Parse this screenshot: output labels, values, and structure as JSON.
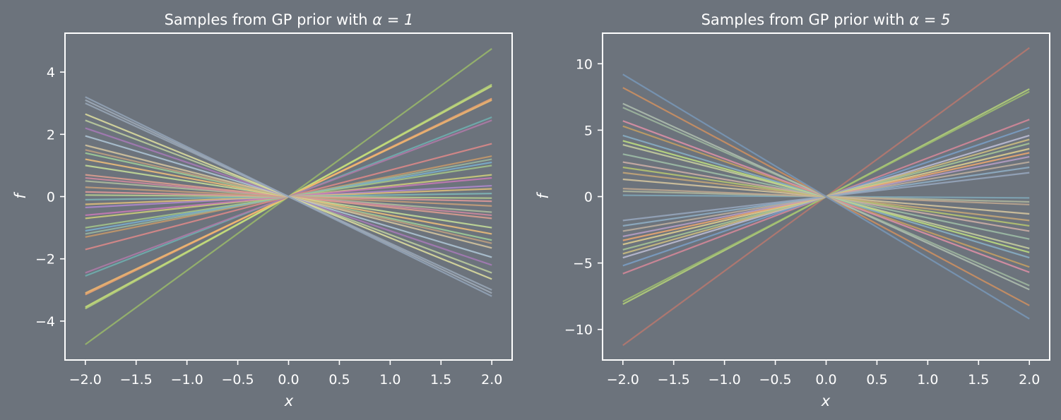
{
  "chart_data": [
    {
      "type": "line",
      "title_prefix": "Samples from GP prior with ",
      "title_math": "α = 1",
      "xlabel": "x",
      "ylabel": "f",
      "xlim": [
        -2.2,
        2.2
      ],
      "ylim": [
        -5.25,
        5.25
      ],
      "xticks": [
        -2.0,
        -1.5,
        -1.0,
        -0.5,
        0.0,
        0.5,
        1.0,
        1.5,
        2.0
      ],
      "xtick_labels": [
        "−2.0",
        "−1.5",
        "−1.0",
        "−0.5",
        "0.0",
        "0.5",
        "1.0",
        "1.5",
        "2.0"
      ],
      "yticks": [
        -4,
        -2,
        0,
        2,
        4
      ],
      "ytick_labels": [
        "−4",
        "−2",
        "0",
        "2",
        "4"
      ],
      "x_range": [
        -2,
        2
      ],
      "grid": false,
      "series_note_slopes": "each sample is a line f = w·x through the origin; values below are f at x = 2",
      "series": [
        {
          "f_at_2": 4.75,
          "color": "#9aba6a"
        },
        {
          "f_at_2": 3.6,
          "color": "#b6d47a"
        },
        {
          "f_at_2": 3.55,
          "color": "#c9e07a"
        },
        {
          "f_at_2": 3.15,
          "color": "#f0a66e"
        },
        {
          "f_at_2": 3.1,
          "color": "#f4b870"
        },
        {
          "f_at_2": 2.55,
          "color": "#6fb0b0"
        },
        {
          "f_at_2": 2.45,
          "color": "#b07aa8"
        },
        {
          "f_at_2": 1.7,
          "color": "#e08a8a"
        },
        {
          "f_at_2": 1.3,
          "color": "#c99a6a"
        },
        {
          "f_at_2": 1.2,
          "color": "#9ab8a0"
        },
        {
          "f_at_2": 1.1,
          "color": "#7ab0d0"
        },
        {
          "f_at_2": 1.0,
          "color": "#a6c88a"
        },
        {
          "f_at_2": 0.7,
          "color": "#d0d07a"
        },
        {
          "f_at_2": 0.6,
          "color": "#c97ab8"
        },
        {
          "f_at_2": 0.35,
          "color": "#b08ad0"
        },
        {
          "f_at_2": 0.25,
          "color": "#e0c07a"
        },
        {
          "f_at_2": 0.1,
          "color": "#80b8b8"
        },
        {
          "f_at_2": -0.05,
          "color": "#b8d090"
        },
        {
          "f_at_2": -0.15,
          "color": "#e09a9a"
        },
        {
          "f_at_2": -0.3,
          "color": "#c9a07a"
        },
        {
          "f_at_2": -0.5,
          "color": "#b0c0a0"
        },
        {
          "f_at_2": -0.6,
          "color": "#d08aa0"
        },
        {
          "f_at_2": -0.7,
          "color": "#e0a090"
        },
        {
          "f_at_2": -1.0,
          "color": "#c8e09a"
        },
        {
          "f_at_2": -1.2,
          "color": "#f0c07a"
        },
        {
          "f_at_2": -1.4,
          "color": "#a0d09a"
        },
        {
          "f_at_2": -1.5,
          "color": "#c0a080"
        },
        {
          "f_at_2": -1.65,
          "color": "#d8c8a0"
        },
        {
          "f_at_2": -1.95,
          "color": "#b0c8d8"
        },
        {
          "f_at_2": -2.2,
          "color": "#a87ab8"
        },
        {
          "f_at_2": -2.45,
          "color": "#c0d0a0"
        },
        {
          "f_at_2": -2.65,
          "color": "#e0e0a0"
        },
        {
          "f_at_2": -3.0,
          "color": "#9aa8b8"
        },
        {
          "f_at_2": -3.1,
          "color": "#a0acba"
        },
        {
          "f_at_2": -3.2,
          "color": "#94a4b8"
        }
      ]
    },
    {
      "type": "line",
      "title_prefix": "Samples from GP prior with ",
      "title_math": "α = 5",
      "xlabel": "x",
      "ylabel": "f",
      "xlim": [
        -2.2,
        2.2
      ],
      "ylim": [
        -12.3,
        12.3
      ],
      "xticks": [
        -2.0,
        -1.5,
        -1.0,
        -0.5,
        0.0,
        0.5,
        1.0,
        1.5,
        2.0
      ],
      "xtick_labels": [
        "−2.0",
        "−1.5",
        "−1.0",
        "−0.5",
        "0.0",
        "0.5",
        "1.0",
        "1.5",
        "2.0"
      ],
      "yticks": [
        -10,
        -5,
        0,
        5,
        10
      ],
      "ytick_labels": [
        "−10",
        "−5",
        "0",
        "5",
        "10"
      ],
      "x_range": [
        -2,
        2
      ],
      "grid": false,
      "series": [
        {
          "f_at_2": 11.2,
          "color": "#b8786e"
        },
        {
          "f_at_2": 8.1,
          "color": "#b6d47a"
        },
        {
          "f_at_2": 7.9,
          "color": "#a0c070"
        },
        {
          "f_at_2": 5.8,
          "color": "#d8889a"
        },
        {
          "f_at_2": 5.2,
          "color": "#7aa0c8"
        },
        {
          "f_at_2": 4.6,
          "color": "#c0c0d8"
        },
        {
          "f_at_2": 4.3,
          "color": "#d0c080"
        },
        {
          "f_at_2": 4.0,
          "color": "#a8c898"
        },
        {
          "f_at_2": 3.6,
          "color": "#e0d090"
        },
        {
          "f_at_2": 3.3,
          "color": "#f0a870"
        },
        {
          "f_at_2": 3.0,
          "color": "#b8a0c8"
        },
        {
          "f_at_2": 2.6,
          "color": "#c0b0a0"
        },
        {
          "f_at_2": 2.2,
          "color": "#90b0c8"
        },
        {
          "f_at_2": 1.8,
          "color": "#98a8c0"
        },
        {
          "f_at_2": -0.1,
          "color": "#80a8b8"
        },
        {
          "f_at_2": -0.4,
          "color": "#b0b8a0"
        },
        {
          "f_at_2": -0.6,
          "color": "#c0a890"
        },
        {
          "f_at_2": -1.3,
          "color": "#d8c8a0"
        },
        {
          "f_at_2": -1.8,
          "color": "#c8a878"
        },
        {
          "f_at_2": -2.2,
          "color": "#b8c870"
        },
        {
          "f_at_2": -2.6,
          "color": "#d0b0a8"
        },
        {
          "f_at_2": -3.2,
          "color": "#a0c0a8"
        },
        {
          "f_at_2": -3.9,
          "color": "#c8d0a0"
        },
        {
          "f_at_2": -4.2,
          "color": "#c0e080"
        },
        {
          "f_at_2": -4.6,
          "color": "#88b0c8"
        },
        {
          "f_at_2": -5.3,
          "color": "#c8a060"
        },
        {
          "f_at_2": -5.7,
          "color": "#e090a8"
        },
        {
          "f_at_2": -6.7,
          "color": "#a0b8a0"
        },
        {
          "f_at_2": -7.0,
          "color": "#b0c0b0"
        },
        {
          "f_at_2": -8.2,
          "color": "#d09060"
        },
        {
          "f_at_2": -9.2,
          "color": "#7898b8"
        }
      ]
    }
  ]
}
